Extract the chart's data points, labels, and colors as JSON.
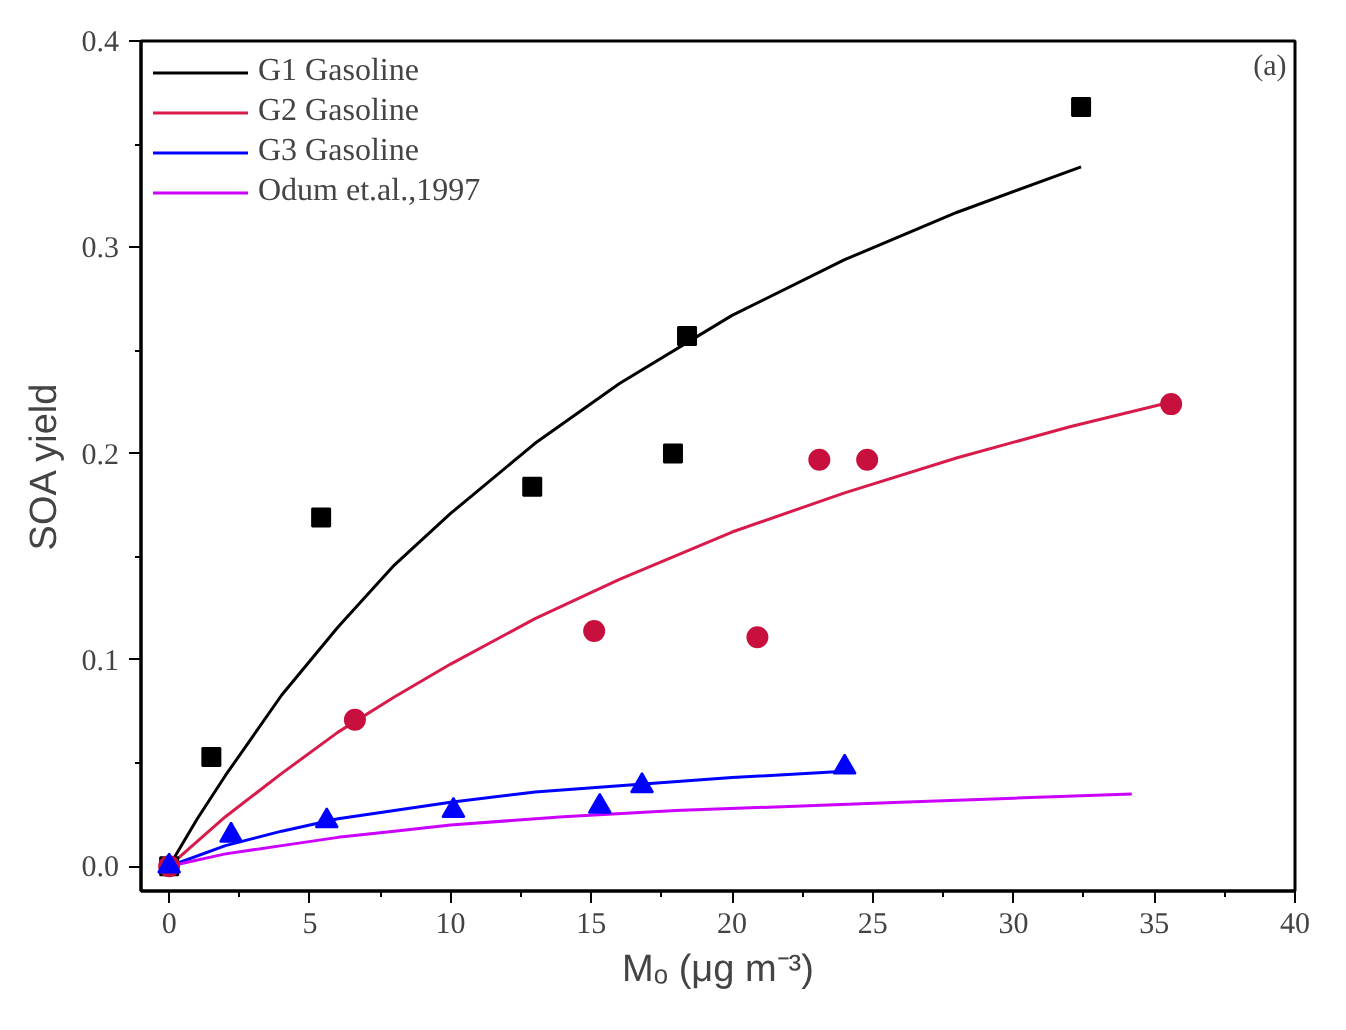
{
  "chart_data": {
    "type": "line",
    "xlabel": "Mₒ (μg m⁻³)",
    "ylabel": "SOA yield",
    "annotations": [
      "(a)"
    ],
    "xlim": [
      -1,
      40
    ],
    "ylim": [
      -0.012,
      0.4
    ],
    "xticks": [
      0,
      5,
      10,
      15,
      20,
      25,
      30,
      35,
      40
    ],
    "yticks": [
      {
        "value": 0,
        "label": "0.0"
      },
      {
        "value": 0.1,
        "label": "0.1"
      },
      {
        "value": 0.2,
        "label": "0.2"
      },
      {
        "value": 0.3,
        "label": "0.3"
      },
      {
        "value": 0.4,
        "label": "0.4"
      }
    ],
    "grid": false,
    "legend": "top left",
    "line_style": "solid",
    "series": [
      {
        "name": "G1 Gasoline",
        "color": "#000000",
        "x": [
          0,
          1,
          2,
          4,
          6,
          8,
          10,
          13,
          16,
          20,
          24,
          28,
          32.4
        ],
        "values": [
          0,
          0.023,
          0.044,
          0.083,
          0.116,
          0.146,
          0.171,
          0.205,
          0.234,
          0.267,
          0.294,
          0.317,
          0.339
        ]
      },
      {
        "name": "G2 Gasoline",
        "color": "#d81b4a",
        "x": [
          0,
          2,
          4,
          6,
          8,
          10,
          13,
          16,
          20,
          24,
          28,
          32,
          35.6
        ],
        "values": [
          0,
          0.024,
          0.045,
          0.065,
          0.082,
          0.098,
          0.12,
          0.139,
          0.162,
          0.181,
          0.198,
          0.213,
          0.225
        ]
      },
      {
        "name": "G3 Gasoline",
        "color": "#0000ff",
        "x": [
          0,
          2,
          4,
          6,
          8,
          10,
          13,
          16,
          20,
          24
        ],
        "values": [
          0,
          0.01,
          0.017,
          0.023,
          0.027,
          0.031,
          0.036,
          0.039,
          0.043,
          0.046
        ]
      },
      {
        "name": "Odum et.al.,1997",
        "color": "#cc00ff",
        "x": [
          0,
          2,
          4,
          6,
          8,
          10,
          14,
          18,
          22,
          26,
          30,
          34.2
        ],
        "values": [
          0,
          0.006,
          0.01,
          0.014,
          0.017,
          0.02,
          0.024,
          0.027,
          0.029,
          0.031,
          0.033,
          0.035
        ]
      },
      {
        "type": "scatter",
        "marker": "square",
        "color": "#000000",
        "x": [
          0,
          1.5,
          5.4,
          12.9,
          17.9,
          18.4,
          32.4
        ],
        "values": [
          0,
          0.053,
          0.169,
          0.184,
          0.2,
          0.257,
          0.368
        ]
      },
      {
        "type": "scatter",
        "marker": "circle",
        "color": "#c8103e",
        "x": [
          0,
          6.6,
          15.1,
          20.9,
          23.1,
          24.8,
          35.6
        ],
        "values": [
          0,
          0.071,
          0.114,
          0.111,
          0.197,
          0.197,
          0.224
        ]
      },
      {
        "type": "scatter",
        "marker": "triangle",
        "color": "#0000ff",
        "x": [
          0,
          2.2,
          5.6,
          10.1,
          15.3,
          16.8,
          24.0
        ],
        "values": [
          0,
          0.015,
          0.022,
          0.027,
          0.029,
          0.039,
          0.048
        ]
      }
    ]
  }
}
